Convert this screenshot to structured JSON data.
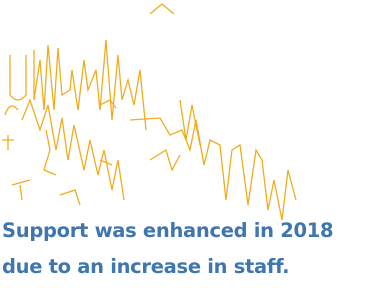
{
  "caption": {
    "lines": [
      "Support was enhanced in 2018",
      "due to an increase in staff."
    ]
  }
}
